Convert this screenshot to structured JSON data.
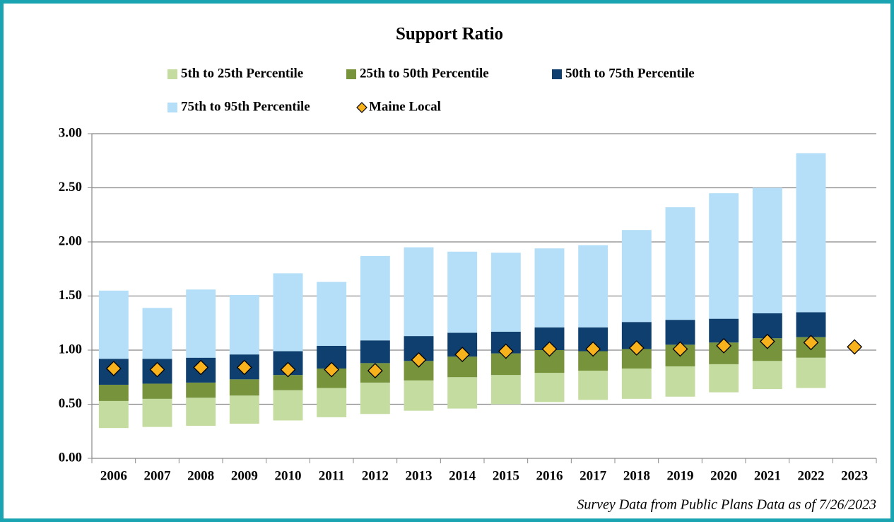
{
  "chart_data": {
    "type": "floating-stacked-bar",
    "title": "Support Ratio",
    "footnote": "Survey Data from Public Plans Data as of 7/26/2023",
    "categories": [
      "2006",
      "2007",
      "2008",
      "2009",
      "2010",
      "2011",
      "2012",
      "2013",
      "2014",
      "2015",
      "2016",
      "2017",
      "2018",
      "2019",
      "2020",
      "2021",
      "2022",
      "2023"
    ],
    "base": [
      0.28,
      0.29,
      0.3,
      0.32,
      0.35,
      0.38,
      0.41,
      0.44,
      0.46,
      0.5,
      0.52,
      0.54,
      0.55,
      0.57,
      0.61,
      0.64,
      0.65,
      null
    ],
    "series": [
      {
        "name": "5th to 25th Percentile",
        "color": "#c4dca0",
        "values": [
          0.25,
          0.26,
          0.26,
          0.26,
          0.28,
          0.27,
          0.29,
          0.28,
          0.29,
          0.27,
          0.27,
          0.27,
          0.28,
          0.28,
          0.26,
          0.26,
          0.28,
          null
        ]
      },
      {
        "name": "25th to 50th Percentile",
        "color": "#77933c",
        "values": [
          0.15,
          0.14,
          0.14,
          0.15,
          0.14,
          0.18,
          0.18,
          0.18,
          0.19,
          0.2,
          0.21,
          0.18,
          0.18,
          0.2,
          0.2,
          0.21,
          0.19,
          null
        ]
      },
      {
        "name": "50th to 75th Percentile",
        "color": "#0e3f6e",
        "values": [
          0.24,
          0.23,
          0.23,
          0.23,
          0.22,
          0.21,
          0.21,
          0.23,
          0.22,
          0.2,
          0.21,
          0.22,
          0.25,
          0.23,
          0.22,
          0.23,
          0.23,
          null
        ]
      },
      {
        "name": "75th to 95th Percentile",
        "color": "#b5dff8",
        "values": [
          0.63,
          0.47,
          0.63,
          0.55,
          0.72,
          0.59,
          0.78,
          0.82,
          0.75,
          0.73,
          0.73,
          0.76,
          0.85,
          1.04,
          1.16,
          1.16,
          1.47,
          null
        ]
      },
      {
        "name": "Maine Local",
        "color": "#f7b21c",
        "style": "diamond",
        "values": [
          0.83,
          0.82,
          0.84,
          0.84,
          0.82,
          0.82,
          0.81,
          0.91,
          0.96,
          0.99,
          1.01,
          1.01,
          1.02,
          1.01,
          1.04,
          1.08,
          1.07,
          1.03
        ]
      }
    ],
    "ylim": [
      0,
      3
    ],
    "yticks": [
      {
        "value": 0,
        "label": "0.00"
      },
      {
        "value": 0.5,
        "label": "0.50"
      },
      {
        "value": 1,
        "label": "1.00"
      },
      {
        "value": 1.5,
        "label": "1.50"
      },
      {
        "value": 2,
        "label": "2.00"
      },
      {
        "value": 2.5,
        "label": "2.50"
      },
      {
        "value": 3,
        "label": "3.00"
      }
    ],
    "grid": true
  }
}
